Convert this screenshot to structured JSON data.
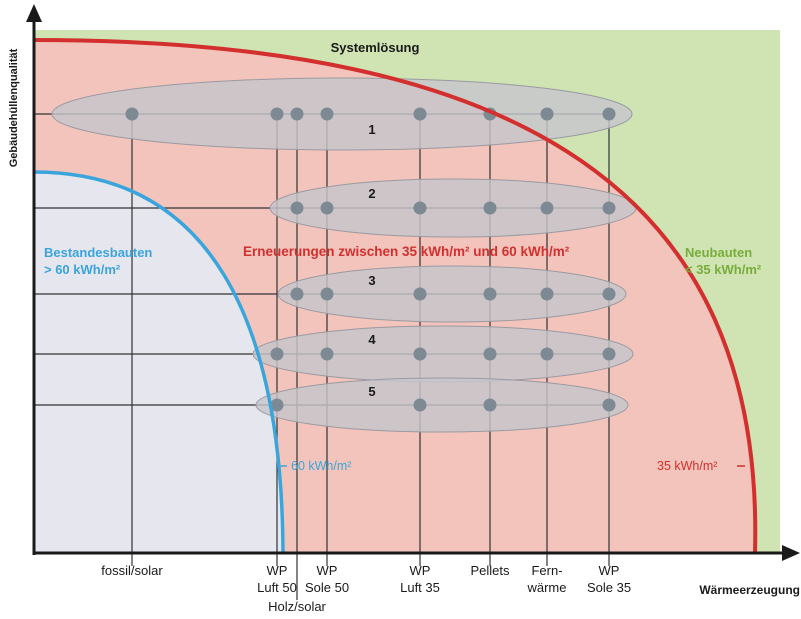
{
  "title": "Systemlösung",
  "y_axis_label": "Gebäudehüllenqualität",
  "x_axis_label": "Wärmeerzeugung",
  "zones": {
    "bestandesbauten": {
      "title": "Bestandesbauten",
      "subtitle": "> 60 kWh/m²",
      "boundary_label": "60 kWh/m²",
      "color": "#3aa5dc",
      "fill": "#e6e6ef"
    },
    "erneuerungen": {
      "title": "Erneuerungen zwischen 35 kWh/m² und 60 kWh/m²",
      "boundary_label": "35 kWh/m²",
      "color": "#d32f2f",
      "fill": "#f2c4bb"
    },
    "neubauten": {
      "title": "Neubauten",
      "subtitle": "< 35 kWh/m²",
      "color": "#79ad3a",
      "fill": "#cfe3b3"
    }
  },
  "systems": [
    {
      "id": "fossil_solar",
      "lines": [
        "fossil/solar"
      ]
    },
    {
      "id": "wp_luft_50",
      "lines": [
        "WP",
        "Luft 50"
      ]
    },
    {
      "id": "holz_solar",
      "lines": [
        "Holz/solar"
      ]
    },
    {
      "id": "wp_sole_50",
      "lines": [
        "WP",
        "Sole 50"
      ]
    },
    {
      "id": "wp_luft_35",
      "lines": [
        "WP",
        "Luft 35"
      ]
    },
    {
      "id": "pellets",
      "lines": [
        "Pellets"
      ]
    },
    {
      "id": "fernwaerme",
      "lines": [
        "Fern-",
        "wärme"
      ]
    },
    {
      "id": "wp_sole_35",
      "lines": [
        "WP",
        "Sole 35"
      ]
    }
  ],
  "solutions": [
    {
      "number": "1",
      "systems": [
        "fossil_solar",
        "wp_luft_50",
        "holz_solar",
        "wp_sole_50",
        "wp_luft_35",
        "pellets",
        "fernwaerme",
        "wp_sole_35"
      ]
    },
    {
      "number": "2",
      "systems": [
        "holz_solar",
        "wp_sole_50",
        "wp_luft_35",
        "pellets",
        "fernwaerme",
        "wp_sole_35"
      ]
    },
    {
      "number": "3",
      "systems": [
        "holz_solar",
        "wp_sole_50",
        "wp_luft_35",
        "pellets",
        "fernwaerme",
        "wp_sole_35"
      ]
    },
    {
      "number": "4",
      "systems": [
        "wp_luft_50",
        "wp_sole_50",
        "wp_luft_35",
        "pellets",
        "fernwaerme",
        "wp_sole_35"
      ]
    },
    {
      "number": "5",
      "systems": [
        "wp_luft_50",
        "wp_luft_35",
        "pellets",
        "wp_sole_35"
      ]
    }
  ],
  "colors": {
    "dot": "#7d8a93",
    "ellipse_fill": "#c6c6cc",
    "axis": "#1a1a1a",
    "grid": "#333333"
  }
}
